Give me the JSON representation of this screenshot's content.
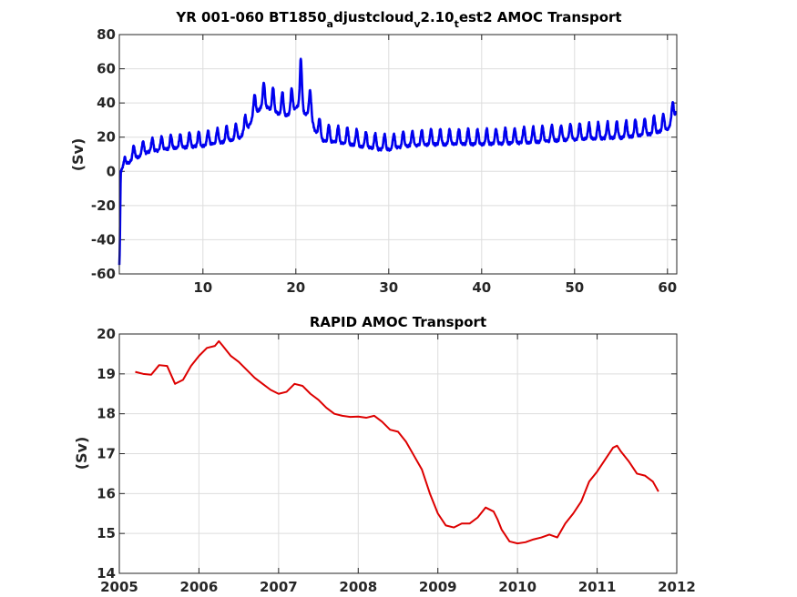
{
  "chart_data": [
    {
      "type": "line",
      "title_parts": [
        {
          "text": "YR 001-060 BT1850",
          "sub": false
        },
        {
          "text": "a",
          "sub": true
        },
        {
          "text": "djustcloud",
          "sub": false
        },
        {
          "text": "v",
          "sub": true
        },
        {
          "text": "2.10",
          "sub": false
        },
        {
          "text": "t",
          "sub": true
        },
        {
          "text": "est2 AMOC Transport",
          "sub": false
        }
      ],
      "xlabel": "",
      "ylabel": "(Sv)",
      "xlim": [
        1,
        61
      ],
      "ylim": [
        -60,
        80
      ],
      "xticks": [
        10,
        20,
        30,
        40,
        50,
        60
      ],
      "yticks": [
        -60,
        -40,
        -20,
        0,
        20,
        40,
        60,
        80
      ],
      "grid": true,
      "color": "#0000ee",
      "series": [
        {
          "base_points": [
            [
              1,
              -55
            ],
            [
              1.05,
              -45
            ],
            [
              1.15,
              0
            ],
            [
              1.6,
              5
            ],
            [
              2.5,
              9
            ],
            [
              4,
              13
            ],
            [
              6,
              15
            ],
            [
              8,
              16
            ],
            [
              10,
              17
            ],
            [
              12,
              19
            ],
            [
              14,
              22
            ],
            [
              15,
              29
            ],
            [
              15.5,
              36
            ],
            [
              16.5,
              42
            ],
            [
              17.5,
              39
            ],
            [
              18.5,
              36
            ],
            [
              19.5,
              37
            ],
            [
              20.1,
              42
            ],
            [
              20.5,
              46
            ],
            [
              21,
              37
            ],
            [
              21.5,
              38
            ],
            [
              22,
              27
            ],
            [
              23,
              20
            ],
            [
              25,
              19
            ],
            [
              27,
              17
            ],
            [
              29,
              15
            ],
            [
              30,
              15
            ],
            [
              32,
              17
            ],
            [
              35,
              18
            ],
            [
              40,
              18
            ],
            [
              45,
              19
            ],
            [
              50,
              21
            ],
            [
              55,
              22
            ],
            [
              58,
              24
            ],
            [
              60,
              27
            ],
            [
              61,
              37
            ]
          ],
          "amp_points": [
            [
              1,
              0
            ],
            [
              1.5,
              3
            ],
            [
              2,
              6
            ],
            [
              15,
              7
            ],
            [
              16,
              10
            ],
            [
              20,
              12
            ],
            [
              20.5,
              22
            ],
            [
              21,
              13
            ],
            [
              22,
              8
            ],
            [
              30,
              7
            ],
            [
              45,
              7
            ],
            [
              61,
              8
            ]
          ],
          "period": 1
        }
      ]
    },
    {
      "type": "line",
      "title": "RAPID AMOC Transport",
      "xlabel": "",
      "ylabel": "(Sv)",
      "xlim": [
        2005,
        2012
      ],
      "ylim": [
        14,
        20
      ],
      "xticks": [
        "2005",
        "2006",
        "2007",
        "2008",
        "2009",
        "2010",
        "2011",
        "2012"
      ],
      "yticks": [
        "14",
        "15",
        "16",
        "17",
        "18",
        "19",
        "20"
      ],
      "grid": true,
      "color": "#dd0000",
      "series": [
        {
          "x": [
            2005.2,
            2005.3,
            2005.4,
            2005.5,
            2005.6,
            2005.7,
            2005.8,
            2005.9,
            2006.0,
            2006.1,
            2006.2,
            2006.25,
            2006.3,
            2006.4,
            2006.5,
            2006.6,
            2006.7,
            2006.8,
            2006.9,
            2007.0,
            2007.1,
            2007.2,
            2007.3,
            2007.4,
            2007.5,
            2007.6,
            2007.7,
            2007.8,
            2007.9,
            2008.0,
            2008.1,
            2008.2,
            2008.3,
            2008.4,
            2008.5,
            2008.6,
            2008.7,
            2008.8,
            2008.9,
            2009.0,
            2009.1,
            2009.2,
            2009.3,
            2009.4,
            2009.5,
            2009.6,
            2009.7,
            2009.75,
            2009.8,
            2009.9,
            2010.0,
            2010.1,
            2010.2,
            2010.3,
            2010.4,
            2010.5,
            2010.6,
            2010.7,
            2010.8,
            2010.9,
            2011.0,
            2011.1,
            2011.2,
            2011.25,
            2011.3,
            2011.4,
            2011.5,
            2011.6,
            2011.7,
            2011.77
          ],
          "values": [
            19.05,
            19.0,
            18.98,
            19.22,
            19.2,
            18.75,
            18.85,
            19.2,
            19.45,
            19.65,
            19.7,
            19.82,
            19.7,
            19.45,
            19.3,
            19.1,
            18.9,
            18.75,
            18.6,
            18.5,
            18.55,
            18.75,
            18.7,
            18.5,
            18.35,
            18.15,
            18.0,
            17.95,
            17.92,
            17.93,
            17.9,
            17.95,
            17.8,
            17.6,
            17.55,
            17.3,
            16.95,
            16.6,
            16.0,
            15.5,
            15.2,
            15.15,
            15.25,
            15.25,
            15.4,
            15.65,
            15.55,
            15.35,
            15.1,
            14.8,
            14.75,
            14.78,
            14.85,
            14.9,
            14.97,
            14.9,
            15.25,
            15.5,
            15.8,
            16.3,
            16.55,
            16.85,
            17.15,
            17.2,
            17.05,
            16.8,
            16.5,
            16.45,
            16.3,
            16.05
          ]
        }
      ]
    }
  ]
}
